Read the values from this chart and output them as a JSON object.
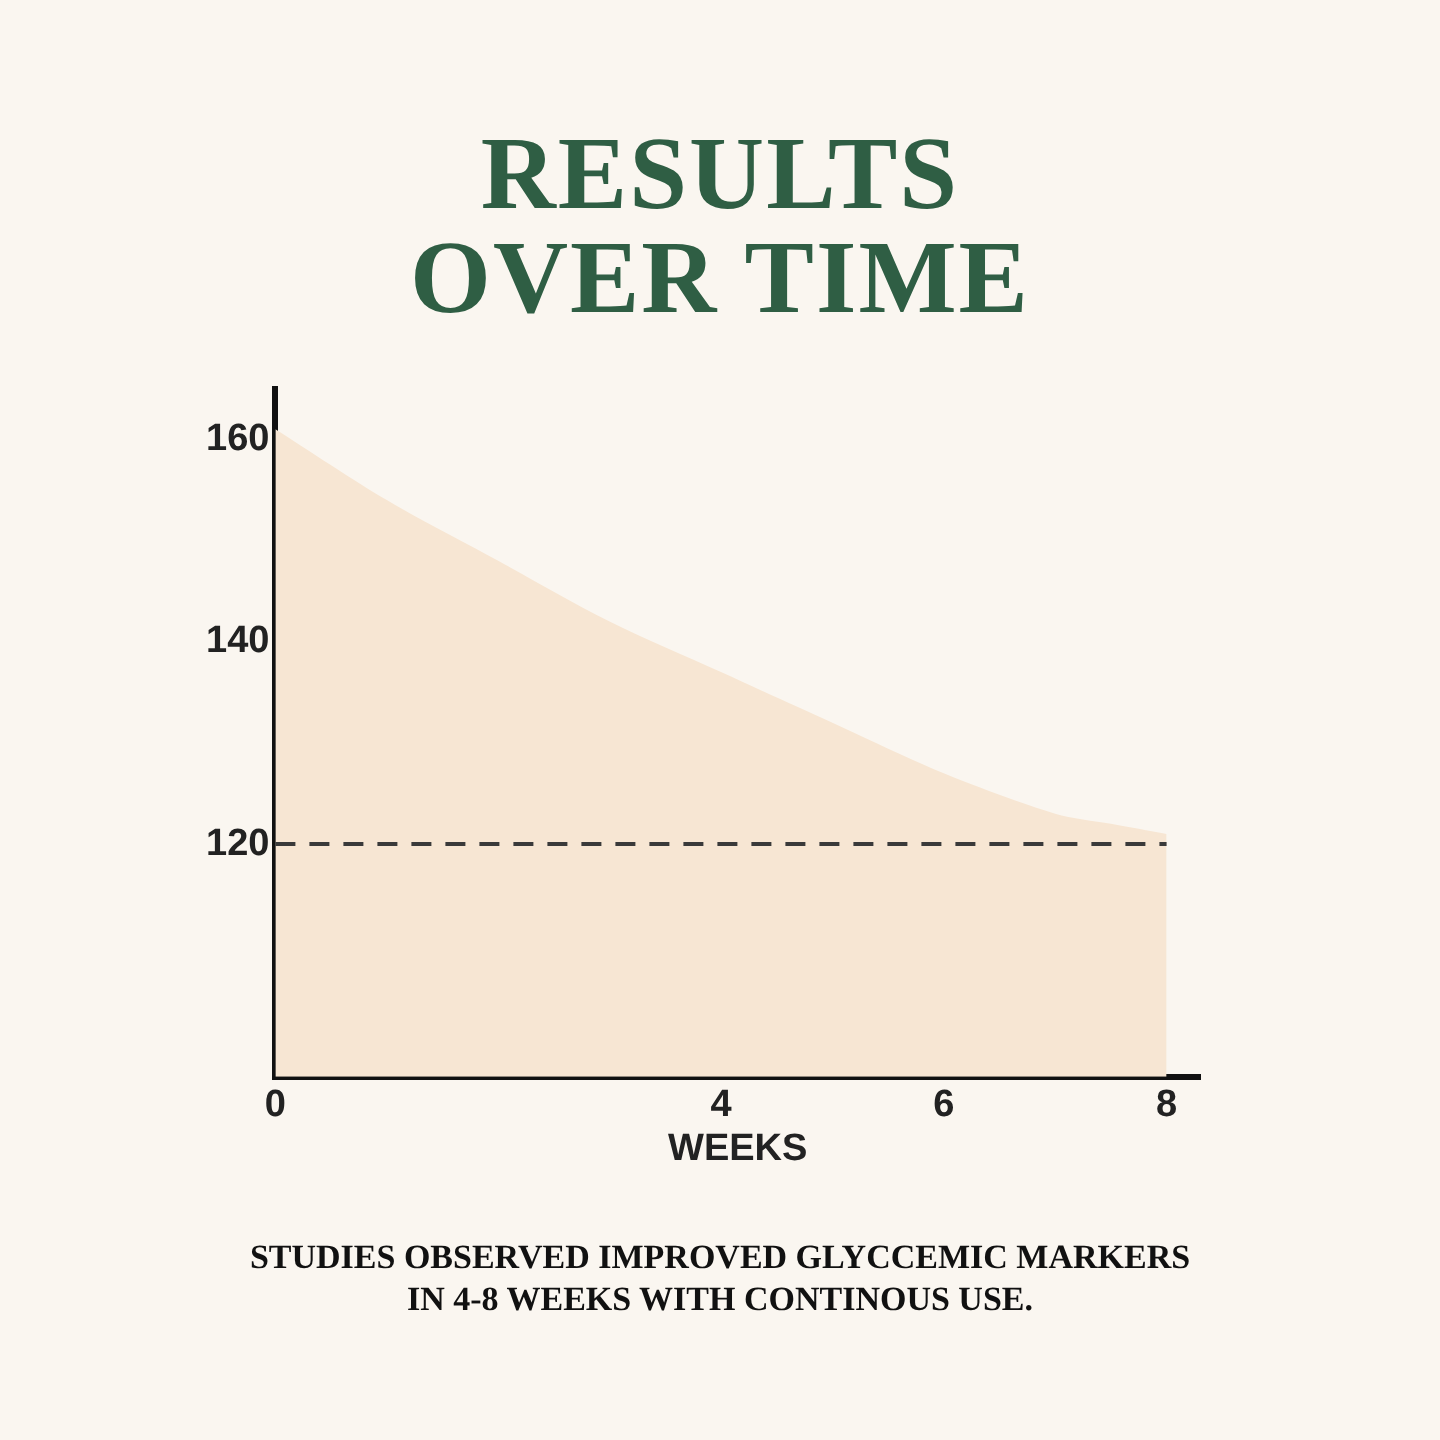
{
  "chart_data": {
    "type": "area",
    "title": "RESULTS\nOVER TIME",
    "xlabel": "WEEKS",
    "x": [
      0,
      1,
      2,
      3,
      4,
      5,
      6,
      7,
      7.5,
      8
    ],
    "series": [
      {
        "color": "#f7e6d3",
        "values": [
          161,
          154,
          148,
          142,
          137,
          132,
          127,
          123,
          122,
          121
        ]
      }
    ],
    "xlim": [
      0,
      8.3
    ],
    "xticks": [
      0,
      4,
      6,
      8
    ],
    "ylim": [
      97,
      165
    ],
    "yticks": [
      120,
      140,
      160
    ],
    "grid": false,
    "ref_lines": [
      {
        "axis": "y",
        "value": 120,
        "color": "#3a3a3a",
        "line_style": "dashed"
      }
    ],
    "annotations": [
      "STUDIES OBSERVED IMPROVED GLYCCEMIC MARKERS\nIN 4-8 WEEKS WITH CONTINOUS USE."
    ]
  }
}
